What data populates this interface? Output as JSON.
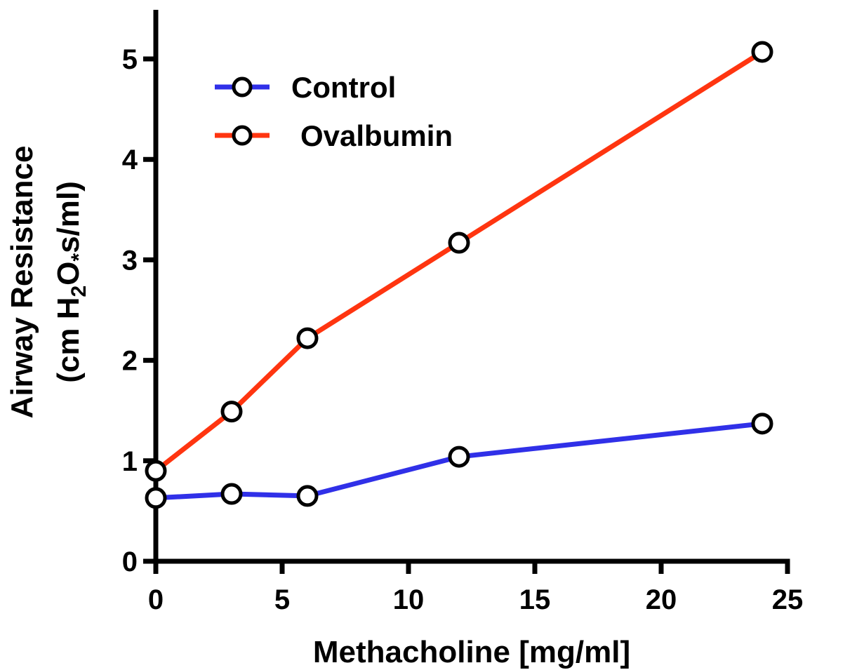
{
  "chart_data": {
    "type": "line",
    "title": "",
    "xlabel": "Methacholine [mg/ml]",
    "ylabel": {
      "line1": "Airway Resistance",
      "line2_prefix": "(cm H",
      "line2_sub": "2",
      "line2_mid": "O",
      "line2_star": "*",
      "line2_suffix": "s/ml)"
    },
    "xlim": [
      0,
      25
    ],
    "ylim": [
      0,
      5.5
    ],
    "xticks": [
      0,
      5,
      10,
      15,
      20,
      25
    ],
    "xtick_labels": [
      "0",
      "5",
      "10",
      "15",
      "20",
      "25"
    ],
    "yticks": [
      0,
      1,
      2,
      3,
      4,
      5
    ],
    "ytick_labels": [
      "0",
      "1",
      "2",
      "3",
      "4",
      "5"
    ],
    "legend_position": "top-left",
    "grid": false,
    "series": [
      {
        "name": "Control",
        "color": "#3030e8",
        "x": [
          0,
          3,
          6,
          12,
          24
        ],
        "values": [
          0.63,
          0.67,
          0.65,
          1.04,
          1.37
        ]
      },
      {
        "name": "Ovalbumin",
        "color": "#ff3510",
        "x": [
          0,
          3,
          6,
          12,
          24
        ],
        "values": [
          0.9,
          1.49,
          2.22,
          3.17,
          5.07
        ]
      }
    ]
  }
}
